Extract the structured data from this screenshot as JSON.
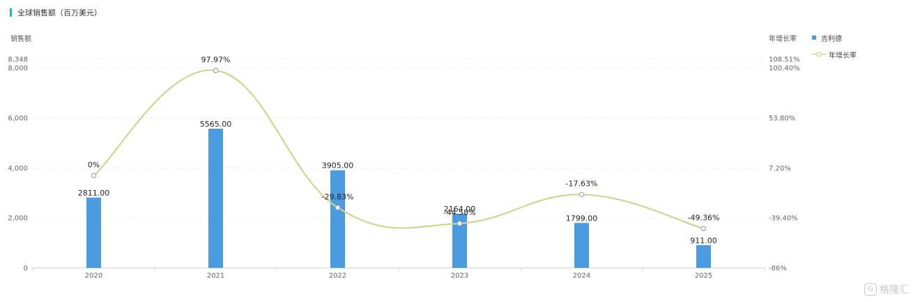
{
  "title": "全球销售额（百万美元）",
  "left_axis_title": "销售额",
  "right_axis_title": "年增长率",
  "watermark": "格隆汇",
  "colors": {
    "bar": "#4a9be0",
    "line": "#c9d98e",
    "accent": "#2bb3b1"
  },
  "chart_data": {
    "type": "bar",
    "categories": [
      "2020",
      "2021",
      "2022",
      "2023",
      "2024",
      "2025"
    ],
    "series": [
      {
        "name": "吉利德",
        "type": "bar",
        "axis": "left",
        "values": [
          2811.0,
          5565.0,
          3905.0,
          2164.0,
          1799.0,
          911.0
        ],
        "labels": [
          "2811.00",
          "5565.00",
          "3905.00",
          "2164.00",
          "1799.00",
          "911.00"
        ]
      },
      {
        "name": "年增长率",
        "type": "line",
        "axis": "right",
        "values": [
          0,
          97.97,
          -29.83,
          -44.58,
          -17.63,
          -49.36
        ],
        "labels": [
          "0%",
          "97.97%",
          "-29.83%",
          "-44.58%",
          "-17.63%",
          "-49.36%"
        ]
      }
    ],
    "left_axis": {
      "min": 0,
      "max": 8348,
      "ticks": [
        "0",
        "2,000",
        "4,000",
        "6,000",
        "8,000",
        "8,348"
      ],
      "tick_values": [
        0,
        2000,
        4000,
        6000,
        8000,
        8348
      ]
    },
    "right_axis": {
      "min": -86,
      "max": 108.51,
      "ticks": [
        "-86%",
        "-39.40%",
        "7.20%",
        "53.80%",
        "100.40%",
        "108.51%"
      ],
      "tick_values": [
        -86,
        -39.4,
        7.2,
        53.8,
        100.4,
        108.51
      ]
    },
    "grid": true,
    "legend_position": "top-right"
  }
}
